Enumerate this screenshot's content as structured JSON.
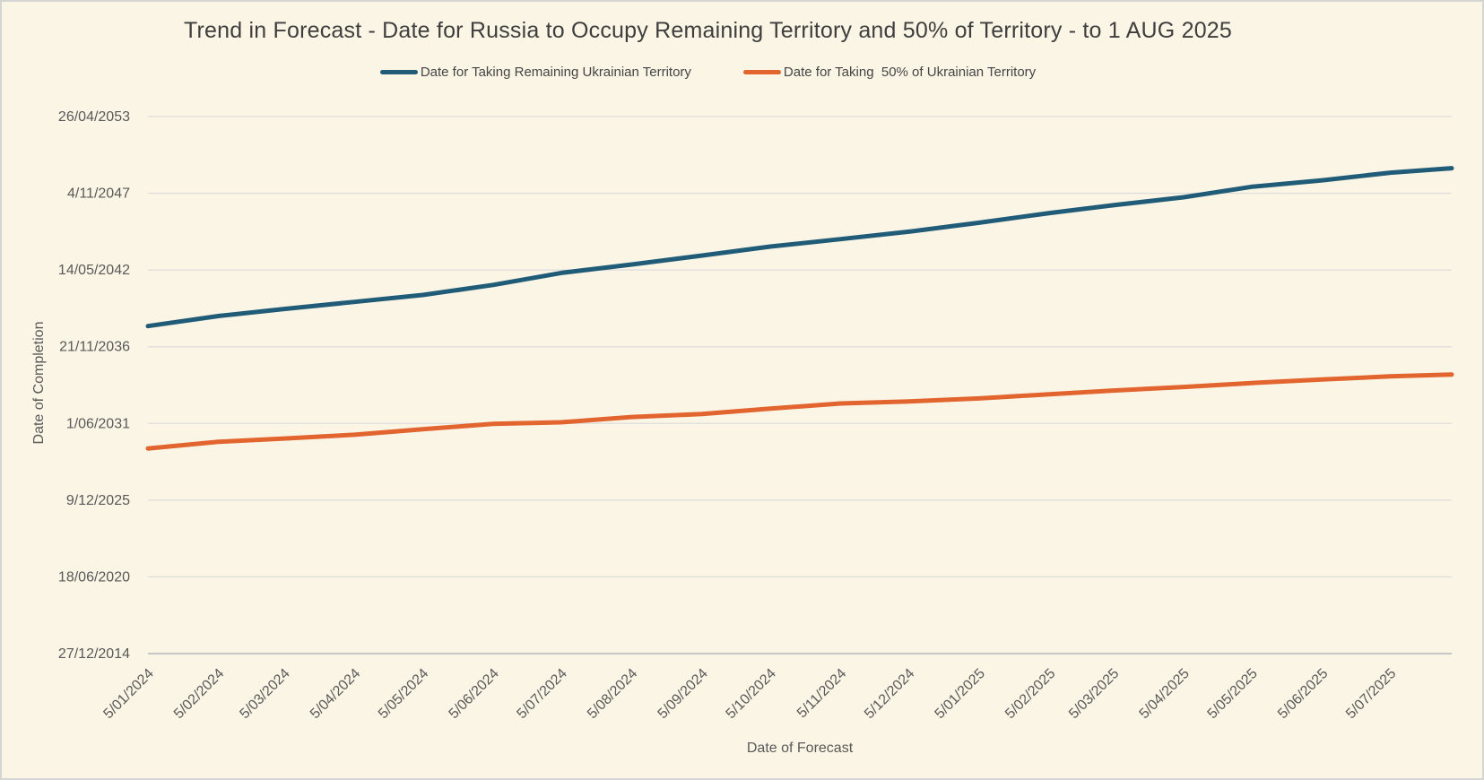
{
  "window": {
    "background_color": "#FBF5E5",
    "border_color": "#D5D5D5"
  },
  "colors": {
    "title_text": "#3E3E3E",
    "label_text": "#595959",
    "gridline": "#DCDCDC",
    "axis_line": "#C6C6C6",
    "series_blue": "#205C78",
    "series_orange": "#E2642E"
  },
  "chart_data": {
    "type": "line",
    "title": "Trend in Forecast - Date for Russia to Occupy Remaining Territory and 50% of Territory - to 1 AUG 2025",
    "xlabel": "Date of Forecast",
    "ylabel": "Date of Completion",
    "grid": "horizontal",
    "legend_position": "top",
    "x_domain": [
      "2024-01-05",
      "2025-08-01"
    ],
    "y_domain": [
      "2014-12-27",
      "2053-04-26"
    ],
    "y_ticks": [
      {
        "label": "27/12/2014",
        "date": "2014-12-27"
      },
      {
        "label": "18/06/2020",
        "date": "2020-06-18"
      },
      {
        "label": "9/12/2025",
        "date": "2025-12-09"
      },
      {
        "label": "1/06/2031",
        "date": "2031-06-01"
      },
      {
        "label": "21/11/2036",
        "date": "2036-11-21"
      },
      {
        "label": "14/05/2042",
        "date": "2042-05-14"
      },
      {
        "label": "4/11/2047",
        "date": "2047-11-04"
      },
      {
        "label": "26/04/2053",
        "date": "2053-04-26"
      }
    ],
    "x_ticks": [
      {
        "label": "5/01/2024",
        "date": "2024-01-05"
      },
      {
        "label": "5/02/2024",
        "date": "2024-02-05"
      },
      {
        "label": "5/03/2024",
        "date": "2024-03-05"
      },
      {
        "label": "5/04/2024",
        "date": "2024-04-05"
      },
      {
        "label": "5/05/2024",
        "date": "2024-05-05"
      },
      {
        "label": "5/06/2024",
        "date": "2024-06-05"
      },
      {
        "label": "5/07/2024",
        "date": "2024-07-05"
      },
      {
        "label": "5/08/2024",
        "date": "2024-08-05"
      },
      {
        "label": "5/09/2024",
        "date": "2024-09-05"
      },
      {
        "label": "5/10/2024",
        "date": "2024-10-05"
      },
      {
        "label": "5/11/2024",
        "date": "2024-11-05"
      },
      {
        "label": "5/12/2024",
        "date": "2024-12-05"
      },
      {
        "label": "5/01/2025",
        "date": "2025-01-05"
      },
      {
        "label": "5/02/2025",
        "date": "2025-02-05"
      },
      {
        "label": "5/03/2025",
        "date": "2025-03-05"
      },
      {
        "label": "5/04/2025",
        "date": "2025-04-05"
      },
      {
        "label": "5/05/2025",
        "date": "2025-05-05"
      },
      {
        "label": "5/06/2025",
        "date": "2025-06-05"
      },
      {
        "label": "5/07/2025",
        "date": "2025-07-05"
      }
    ],
    "series": [
      {
        "name": "Date for Taking Remaining Ukrainian Territory",
        "color": "#205C78",
        "x": [
          "2024-01-05",
          "2024-02-05",
          "2024-03-05",
          "2024-04-05",
          "2024-05-05",
          "2024-06-05",
          "2024-07-05",
          "2024-08-05",
          "2024-09-05",
          "2024-10-05",
          "2024-11-05",
          "2024-12-05",
          "2025-01-05",
          "2025-02-05",
          "2025-03-05",
          "2025-04-05",
          "2025-05-05",
          "2025-06-05",
          "2025-07-05",
          "2025-08-01"
        ],
        "y": [
          "2038-05-12",
          "2039-01-29",
          "2039-08-03",
          "2040-02-02",
          "2040-07-31",
          "2041-04-20",
          "2042-02-27",
          "2042-10-05",
          "2043-05-26",
          "2044-01-15",
          "2044-07-27",
          "2045-02-06",
          "2045-09-27",
          "2046-06-07",
          "2046-12-28",
          "2047-07-24",
          "2048-04-22",
          "2048-10-08",
          "2049-04-23",
          "2049-08-18"
        ]
      },
      {
        "name": "Date for Taking  50% of Ukrainian Territory",
        "color": "#E2642E",
        "x": [
          "2024-01-05",
          "2024-02-05",
          "2024-03-05",
          "2024-04-05",
          "2024-05-05",
          "2024-06-05",
          "2024-07-05",
          "2024-08-05",
          "2024-09-05",
          "2024-10-05",
          "2024-11-05",
          "2024-12-05",
          "2025-01-05",
          "2025-02-05",
          "2025-03-05",
          "2025-04-05",
          "2025-05-05",
          "2025-06-05",
          "2025-07-05",
          "2025-08-01"
        ],
        "y": [
          "2029-08-18",
          "2030-02-06",
          "2030-05-04",
          "2030-08-11",
          "2031-01-01",
          "2031-05-19",
          "2031-07-02",
          "2031-11-17",
          "2032-02-02",
          "2032-06-20",
          "2032-11-03",
          "2032-12-27",
          "2033-03-14",
          "2033-07-02",
          "2033-10-05",
          "2034-01-08",
          "2034-04-20",
          "2034-07-20",
          "2034-10-09",
          "2034-11-25"
        ]
      }
    ]
  }
}
